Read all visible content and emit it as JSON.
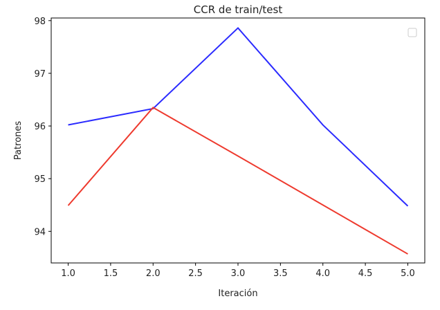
{
  "chart_data": {
    "type": "line",
    "title": "CCR de train/test",
    "xlabel": "Iteración",
    "ylabel": "Patrones",
    "x": [
      1.0,
      2.0,
      3.0,
      4.0,
      5.0
    ],
    "xlim": [
      0.8,
      5.2
    ],
    "ylim": [
      93.4,
      98.05
    ],
    "xticks": [
      "1.0",
      "1.5",
      "2.0",
      "2.5",
      "3.0",
      "3.5",
      "4.0",
      "4.5",
      "5.0"
    ],
    "yticks": [
      "94",
      "95",
      "96",
      "97",
      "98"
    ],
    "grid": false,
    "legend": "top-right (empty)",
    "series": [
      {
        "color": "#2b2bff",
        "values": [
          96.02,
          96.33,
          97.86,
          96.02,
          94.48
        ]
      },
      {
        "color": "#ee3a2e",
        "values": [
          94.49,
          96.35,
          95.43,
          94.5,
          93.57
        ]
      }
    ]
  }
}
